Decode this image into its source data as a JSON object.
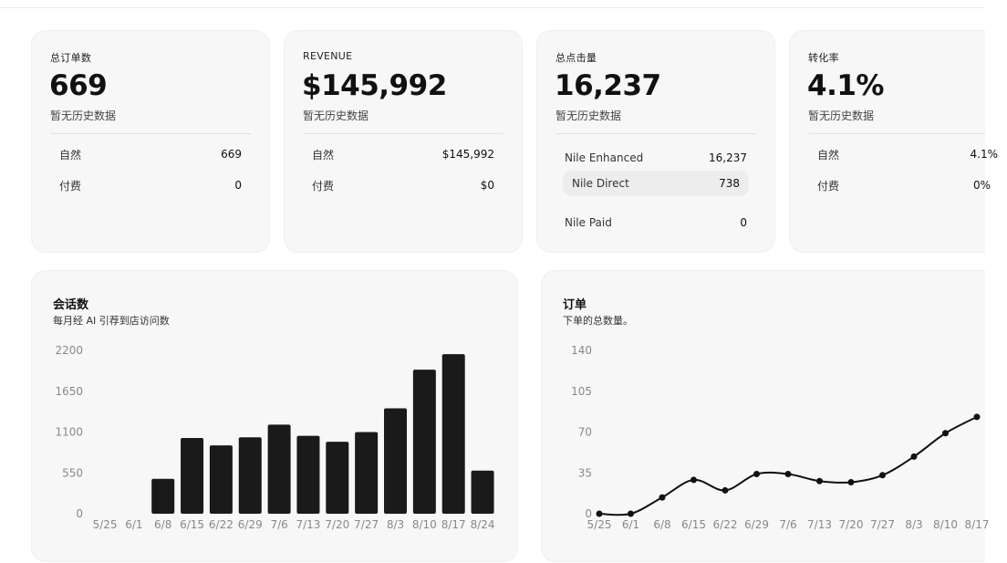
{
  "kpis": [
    {
      "label": "总订单数",
      "value": "669",
      "sub": "暂无历史数据",
      "rows": [
        {
          "label": "自然",
          "value": "669"
        },
        {
          "label": "付费",
          "value": "0"
        }
      ]
    },
    {
      "label": "REVENUE",
      "value": "$145,992",
      "sub": "暂无历史数据",
      "rows": [
        {
          "label": "自然",
          "value": "$145,992"
        },
        {
          "label": "付费",
          "value": "$0"
        }
      ]
    },
    {
      "label": "总点击量",
      "value": "16,237",
      "sub": "暂无历史数据",
      "rows": [
        {
          "label": "Nile Enhanced",
          "value": "16,237"
        },
        {
          "label": "Nile Direct",
          "value": "738"
        },
        {
          "label": "Nile Paid",
          "value": "0"
        }
      ]
    },
    {
      "label": "转化率",
      "value": "4.1%",
      "sub": "暂无历史数据",
      "rows": [
        {
          "label": "自然",
          "value": "4.1%"
        },
        {
          "label": "付费",
          "value": "0%"
        }
      ]
    }
  ],
  "sessions_panel": {
    "title": "会话数",
    "subtitle": "每月经 AI 引荐到店访问数"
  },
  "orders_panel": {
    "title": "订单",
    "subtitle": "下单的总数量。"
  },
  "chart_data": [
    {
      "type": "bar",
      "title": "会话数",
      "subtitle": "每月经 AI 引荐到店访问数",
      "categories": [
        "5/25",
        "6/1",
        "6/8",
        "6/15",
        "6/22",
        "6/29",
        "7/6",
        "7/13",
        "7/20",
        "7/27",
        "8/3",
        "8/10",
        "8/17",
        "8/24"
      ],
      "values": [
        0,
        0,
        470,
        1020,
        920,
        1030,
        1200,
        1050,
        970,
        1100,
        1420,
        1940,
        2150,
        580
      ],
      "yticks": [
        0,
        550,
        1100,
        1650,
        2200
      ],
      "ylim": [
        0,
        2200
      ],
      "color": "#1a1a1a"
    },
    {
      "type": "line",
      "title": "订单",
      "subtitle": "下单的总数量。",
      "categories": [
        "5/25",
        "6/1",
        "6/8",
        "6/15",
        "6/22",
        "6/29",
        "7/6",
        "7/13",
        "7/20",
        "7/27",
        "8/3",
        "8/10",
        "8/17"
      ],
      "values": [
        0,
        0,
        14,
        29,
        20,
        34,
        34,
        28,
        27,
        33,
        49,
        69,
        83
      ],
      "yticks": [
        0,
        35,
        70,
        105,
        140
      ],
      "ylim": [
        0,
        140
      ],
      "color": "#111111"
    }
  ]
}
